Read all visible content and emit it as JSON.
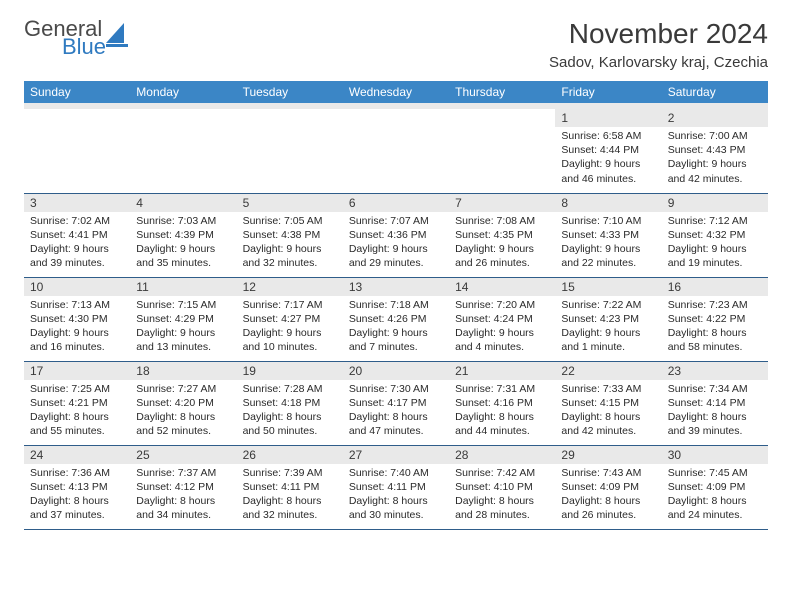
{
  "logo": {
    "text1": "General",
    "text2": "Blue",
    "accent_color": "#2f7ac0",
    "text_color": "#4a4a4a"
  },
  "header": {
    "title": "November 2024",
    "location": "Sadov, Karlovarsky kraj, Czechia"
  },
  "colors": {
    "header_bg": "#3b86c6",
    "header_fg": "#ffffff",
    "daynum_bg": "#e9e9e9",
    "border": "#2f5d8a"
  },
  "daysOfWeek": [
    "Sunday",
    "Monday",
    "Tuesday",
    "Wednesday",
    "Thursday",
    "Friday",
    "Saturday"
  ],
  "weeks": [
    [
      null,
      null,
      null,
      null,
      null,
      {
        "n": "1",
        "sunrise": "6:58 AM",
        "sunset": "4:44 PM",
        "daylight": "9 hours and 46 minutes."
      },
      {
        "n": "2",
        "sunrise": "7:00 AM",
        "sunset": "4:43 PM",
        "daylight": "9 hours and 42 minutes."
      }
    ],
    [
      {
        "n": "3",
        "sunrise": "7:02 AM",
        "sunset": "4:41 PM",
        "daylight": "9 hours and 39 minutes."
      },
      {
        "n": "4",
        "sunrise": "7:03 AM",
        "sunset": "4:39 PM",
        "daylight": "9 hours and 35 minutes."
      },
      {
        "n": "5",
        "sunrise": "7:05 AM",
        "sunset": "4:38 PM",
        "daylight": "9 hours and 32 minutes."
      },
      {
        "n": "6",
        "sunrise": "7:07 AM",
        "sunset": "4:36 PM",
        "daylight": "9 hours and 29 minutes."
      },
      {
        "n": "7",
        "sunrise": "7:08 AM",
        "sunset": "4:35 PM",
        "daylight": "9 hours and 26 minutes."
      },
      {
        "n": "8",
        "sunrise": "7:10 AM",
        "sunset": "4:33 PM",
        "daylight": "9 hours and 22 minutes."
      },
      {
        "n": "9",
        "sunrise": "7:12 AM",
        "sunset": "4:32 PM",
        "daylight": "9 hours and 19 minutes."
      }
    ],
    [
      {
        "n": "10",
        "sunrise": "7:13 AM",
        "sunset": "4:30 PM",
        "daylight": "9 hours and 16 minutes."
      },
      {
        "n": "11",
        "sunrise": "7:15 AM",
        "sunset": "4:29 PM",
        "daylight": "9 hours and 13 minutes."
      },
      {
        "n": "12",
        "sunrise": "7:17 AM",
        "sunset": "4:27 PM",
        "daylight": "9 hours and 10 minutes."
      },
      {
        "n": "13",
        "sunrise": "7:18 AM",
        "sunset": "4:26 PM",
        "daylight": "9 hours and 7 minutes."
      },
      {
        "n": "14",
        "sunrise": "7:20 AM",
        "sunset": "4:24 PM",
        "daylight": "9 hours and 4 minutes."
      },
      {
        "n": "15",
        "sunrise": "7:22 AM",
        "sunset": "4:23 PM",
        "daylight": "9 hours and 1 minute."
      },
      {
        "n": "16",
        "sunrise": "7:23 AM",
        "sunset": "4:22 PM",
        "daylight": "8 hours and 58 minutes."
      }
    ],
    [
      {
        "n": "17",
        "sunrise": "7:25 AM",
        "sunset": "4:21 PM",
        "daylight": "8 hours and 55 minutes."
      },
      {
        "n": "18",
        "sunrise": "7:27 AM",
        "sunset": "4:20 PM",
        "daylight": "8 hours and 52 minutes."
      },
      {
        "n": "19",
        "sunrise": "7:28 AM",
        "sunset": "4:18 PM",
        "daylight": "8 hours and 50 minutes."
      },
      {
        "n": "20",
        "sunrise": "7:30 AM",
        "sunset": "4:17 PM",
        "daylight": "8 hours and 47 minutes."
      },
      {
        "n": "21",
        "sunrise": "7:31 AM",
        "sunset": "4:16 PM",
        "daylight": "8 hours and 44 minutes."
      },
      {
        "n": "22",
        "sunrise": "7:33 AM",
        "sunset": "4:15 PM",
        "daylight": "8 hours and 42 minutes."
      },
      {
        "n": "23",
        "sunrise": "7:34 AM",
        "sunset": "4:14 PM",
        "daylight": "8 hours and 39 minutes."
      }
    ],
    [
      {
        "n": "24",
        "sunrise": "7:36 AM",
        "sunset": "4:13 PM",
        "daylight": "8 hours and 37 minutes."
      },
      {
        "n": "25",
        "sunrise": "7:37 AM",
        "sunset": "4:12 PM",
        "daylight": "8 hours and 34 minutes."
      },
      {
        "n": "26",
        "sunrise": "7:39 AM",
        "sunset": "4:11 PM",
        "daylight": "8 hours and 32 minutes."
      },
      {
        "n": "27",
        "sunrise": "7:40 AM",
        "sunset": "4:11 PM",
        "daylight": "8 hours and 30 minutes."
      },
      {
        "n": "28",
        "sunrise": "7:42 AM",
        "sunset": "4:10 PM",
        "daylight": "8 hours and 28 minutes."
      },
      {
        "n": "29",
        "sunrise": "7:43 AM",
        "sunset": "4:09 PM",
        "daylight": "8 hours and 26 minutes."
      },
      {
        "n": "30",
        "sunrise": "7:45 AM",
        "sunset": "4:09 PM",
        "daylight": "8 hours and 24 minutes."
      }
    ]
  ],
  "labels": {
    "sunrise": "Sunrise:",
    "sunset": "Sunset:",
    "daylight": "Daylight:"
  }
}
